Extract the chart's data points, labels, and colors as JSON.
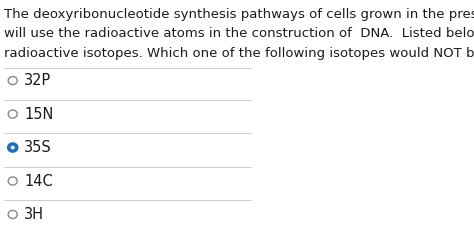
{
  "title_lines": [
    "The deoxyribonucleotide synthesis pathways of cells grown in the presence of isotopes",
    "will use the radioactive atoms in the construction of  DNA.  Listed below are some",
    "radioactive isotopes. Which one of the following isotopes would NOT be found in DNA?"
  ],
  "options": [
    "32P",
    "15N",
    "35S",
    "14C",
    "3H"
  ],
  "selected_index": 2,
  "background_color": "#ffffff",
  "text_color": "#1a1a1a",
  "circle_color": "#888888",
  "selected_circle_color": "#1a72bb",
  "line_color": "#cccccc",
  "title_fontsize": 9.5,
  "option_fontsize": 10.5
}
